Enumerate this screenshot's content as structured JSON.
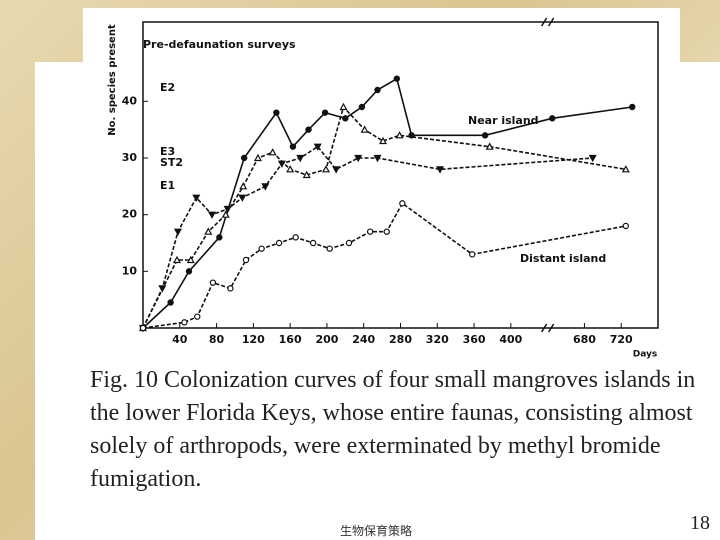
{
  "chart_data": {
    "type": "line",
    "title": "Pre-defaunation surveys",
    "xlabel": "Days",
    "ylabel": "No. species present",
    "annotations": [
      "Near island",
      "Distant island"
    ],
    "xlim": [
      0,
      760
    ],
    "xbreak": [
      440,
      640
    ],
    "ylim": [
      0,
      54
    ],
    "xticks": [
      40,
      80,
      120,
      160,
      200,
      240,
      280,
      320,
      360,
      400,
      680,
      720
    ],
    "yticks": [
      10,
      20,
      30,
      40
    ],
    "series": [
      {
        "name": "E2",
        "color": "#111111",
        "marker": "filled-circle",
        "dashed": false,
        "x": [
          0,
          30,
          50,
          83,
          110,
          145,
          163,
          180,
          198,
          220,
          238,
          255,
          276,
          292,
          372,
          645,
          732
        ],
        "values": [
          0,
          4.5,
          10,
          16,
          30,
          38,
          32,
          35,
          38,
          37,
          39,
          42,
          44,
          34,
          34,
          37,
          39
        ]
      },
      {
        "name": "E3",
        "color": "#111111",
        "marker": "open-triangle",
        "dashed": true,
        "x": [
          0,
          37,
          52,
          71,
          90,
          109,
          125,
          141,
          160,
          178,
          199,
          218,
          241,
          261,
          279,
          377,
          725
        ],
        "values": [
          0,
          12,
          12,
          17,
          20,
          25,
          30,
          31,
          28,
          27,
          28,
          39,
          35,
          33,
          34,
          32,
          28
        ]
      },
      {
        "name": "ST2",
        "color": "#111111",
        "marker": "filled-down-triangle",
        "dashed": true,
        "x": [
          0,
          21,
          38,
          58,
          75,
          92,
          108,
          133,
          151,
          171,
          190,
          210,
          234,
          255,
          323,
          689
        ],
        "values": [
          0,
          7,
          17,
          23,
          20,
          21,
          23,
          25,
          29,
          30,
          32,
          28,
          30,
          30,
          28,
          30
        ]
      },
      {
        "name": "E1",
        "color": "#111111",
        "marker": "open-circle",
        "dashed": true,
        "x": [
          0,
          45,
          59,
          76,
          95,
          112,
          129,
          148,
          166,
          185,
          203,
          224,
          247,
          265,
          282,
          358,
          725
        ],
        "values": [
          0,
          1,
          2,
          8,
          7,
          12,
          14,
          15,
          16,
          15,
          14,
          15,
          17,
          17,
          22,
          13,
          18
        ]
      }
    ]
  },
  "caption": "Fig. 10 Colonization curves of four small mangroves islands in the lower Florida Keys, whose entire faunas, consisting almost solely of arthropods, were exterminated by methyl bromide fumigation.",
  "footer": "生物保育策略",
  "page_number": "18"
}
